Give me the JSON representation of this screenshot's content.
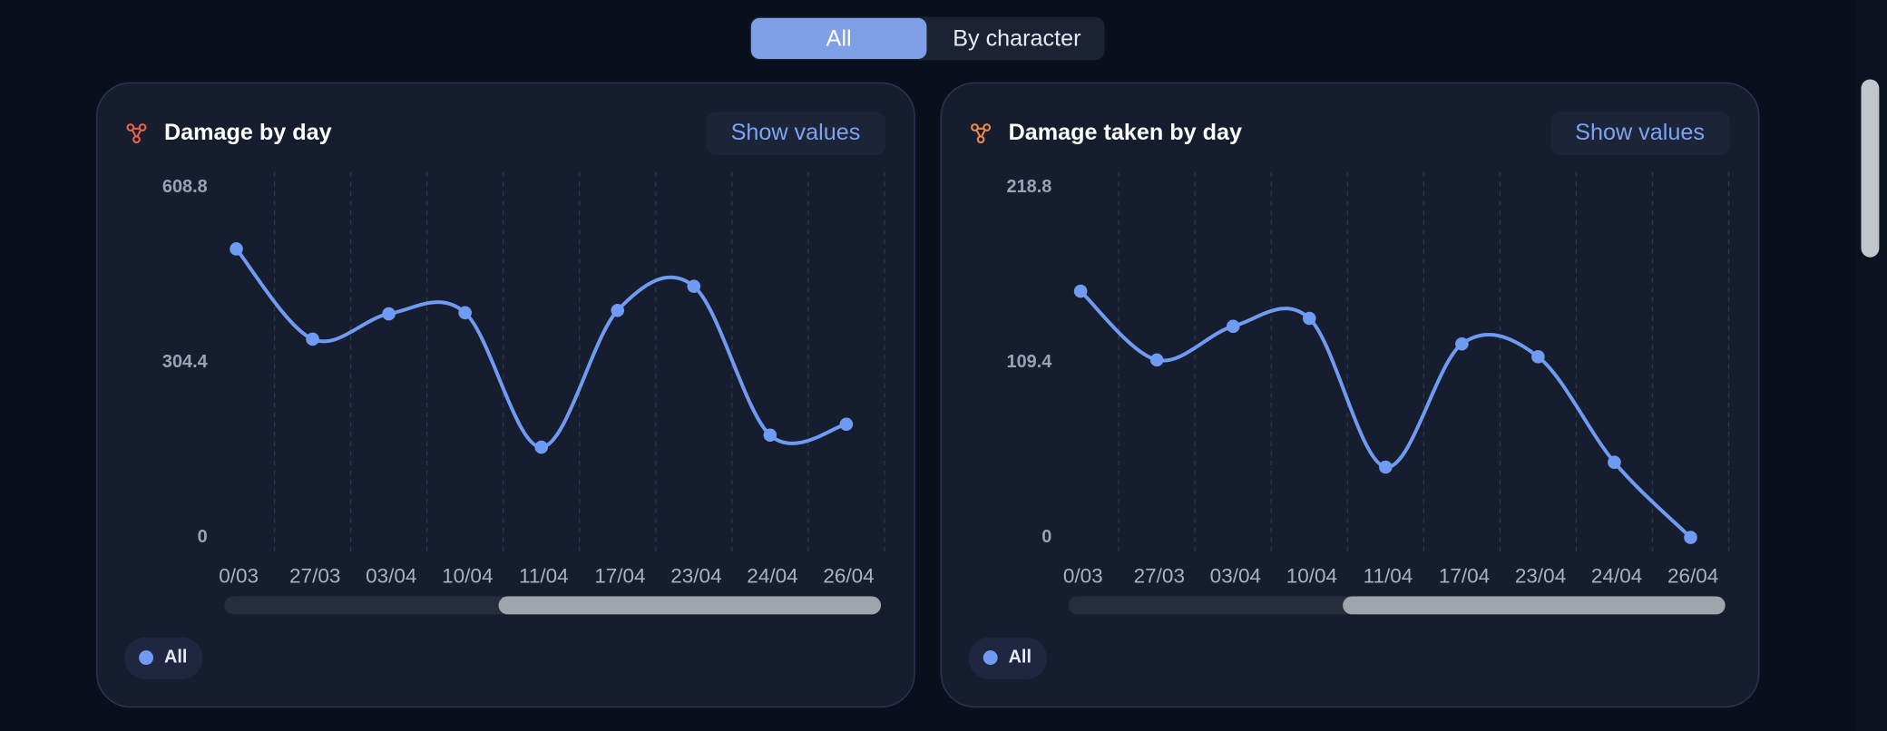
{
  "tabs": [
    "All",
    "By character"
  ],
  "chart_data": [
    {
      "type": "line",
      "title": "Damage by day",
      "button": "Show values",
      "categories": [
        "0/03",
        "27/03",
        "03/04",
        "10/04",
        "11/04",
        "17/04",
        "23/04",
        "24/04",
        "26/04"
      ],
      "series": [
        {
          "name": "All",
          "color": "#6f9bf2",
          "values": [
            502,
            345,
            389,
            391,
            157,
            395,
            437,
            178,
            197
          ]
        }
      ],
      "ylim": [
        0,
        608.8
      ],
      "yticks": [
        0,
        304.4,
        608.8
      ]
    },
    {
      "type": "line",
      "title": "Damage taken by day",
      "button": "Show values",
      "categories": [
        "0/03",
        "27/03",
        "03/04",
        "10/04",
        "11/04",
        "17/04",
        "23/04",
        "24/04",
        "26/04"
      ],
      "series": [
        {
          "name": "All",
          "color": "#6f9bf2",
          "values": [
            154,
            111,
            132,
            137,
            44,
            121,
            113,
            47,
            0
          ]
        }
      ],
      "ylim": [
        0,
        218.8
      ],
      "yticks": [
        0,
        109.4,
        218.8
      ]
    }
  ]
}
